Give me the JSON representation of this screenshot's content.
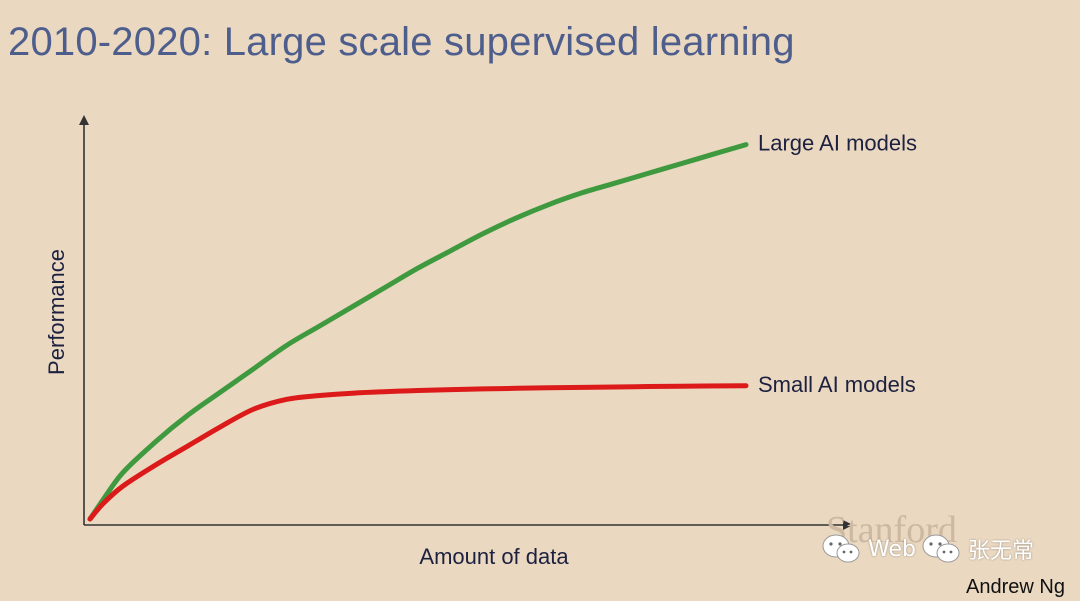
{
  "slide": {
    "title": "2010-2020: Large scale supervised learning",
    "credit": "Andrew Ng",
    "watermark_stanford": "Stanford",
    "watermark_web": "Web",
    "watermark_web_name": "张无常"
  },
  "colors": {
    "background": "#ead8c1",
    "title": "#4e5e8c",
    "large_series": "#3f9a3f",
    "small_series": "#dc1a1a",
    "axis": "#333333"
  },
  "chart_data": {
    "type": "line",
    "title": "",
    "xlabel": "Amount of data",
    "ylabel": "Performance",
    "xlim": [
      0,
      100
    ],
    "ylim": [
      0,
      100
    ],
    "grid": false,
    "tick_labels": false,
    "series": [
      {
        "name": "Large AI models",
        "color": "#3f9a3f",
        "x": [
          0,
          2,
          5,
          10,
          15,
          20,
          25,
          30,
          35,
          40,
          45,
          50,
          55,
          60,
          65,
          70,
          75,
          80,
          85,
          90,
          95,
          100
        ],
        "y": [
          0,
          5,
          12,
          20,
          27,
          33,
          39,
          45,
          50,
          55,
          60,
          65,
          69.5,
          74,
          78,
          81.5,
          84.5,
          87,
          89.5,
          92,
          94.5,
          97
        ]
      },
      {
        "name": "Small AI models",
        "color": "#dc1a1a",
        "x": [
          0,
          2,
          5,
          10,
          15,
          20,
          25,
          30,
          35,
          40,
          50,
          60,
          70,
          80,
          90,
          100
        ],
        "y": [
          0,
          4,
          8.5,
          14,
          19,
          24,
          28.5,
          31,
          32,
          32.6,
          33.3,
          33.7,
          34,
          34.2,
          34.4,
          34.5
        ]
      }
    ]
  }
}
